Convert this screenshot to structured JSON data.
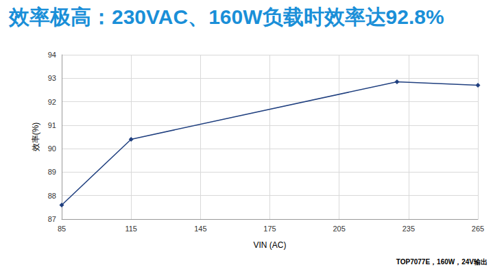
{
  "chart_data": {
    "type": "line",
    "title": "效率极高：230VAC、160W负载时效率达92.8%",
    "x_label": "VIN (AC)",
    "y_label": "效率(%)",
    "x": [
      85,
      115,
      230,
      265
    ],
    "values": [
      87.6,
      90.4,
      92.85,
      92.7
    ],
    "color": "#1f3f7f",
    "marker": "diamond",
    "xlim": [
      85,
      265
    ],
    "xticks": [
      85,
      115,
      145,
      175,
      205,
      235,
      265
    ],
    "ylim": [
      87,
      94
    ],
    "yticks": [
      87,
      88,
      89,
      90,
      91,
      92,
      93,
      94
    ],
    "grid": true,
    "annotations": [
      "TOP7077E，160W，24V输出"
    ]
  }
}
